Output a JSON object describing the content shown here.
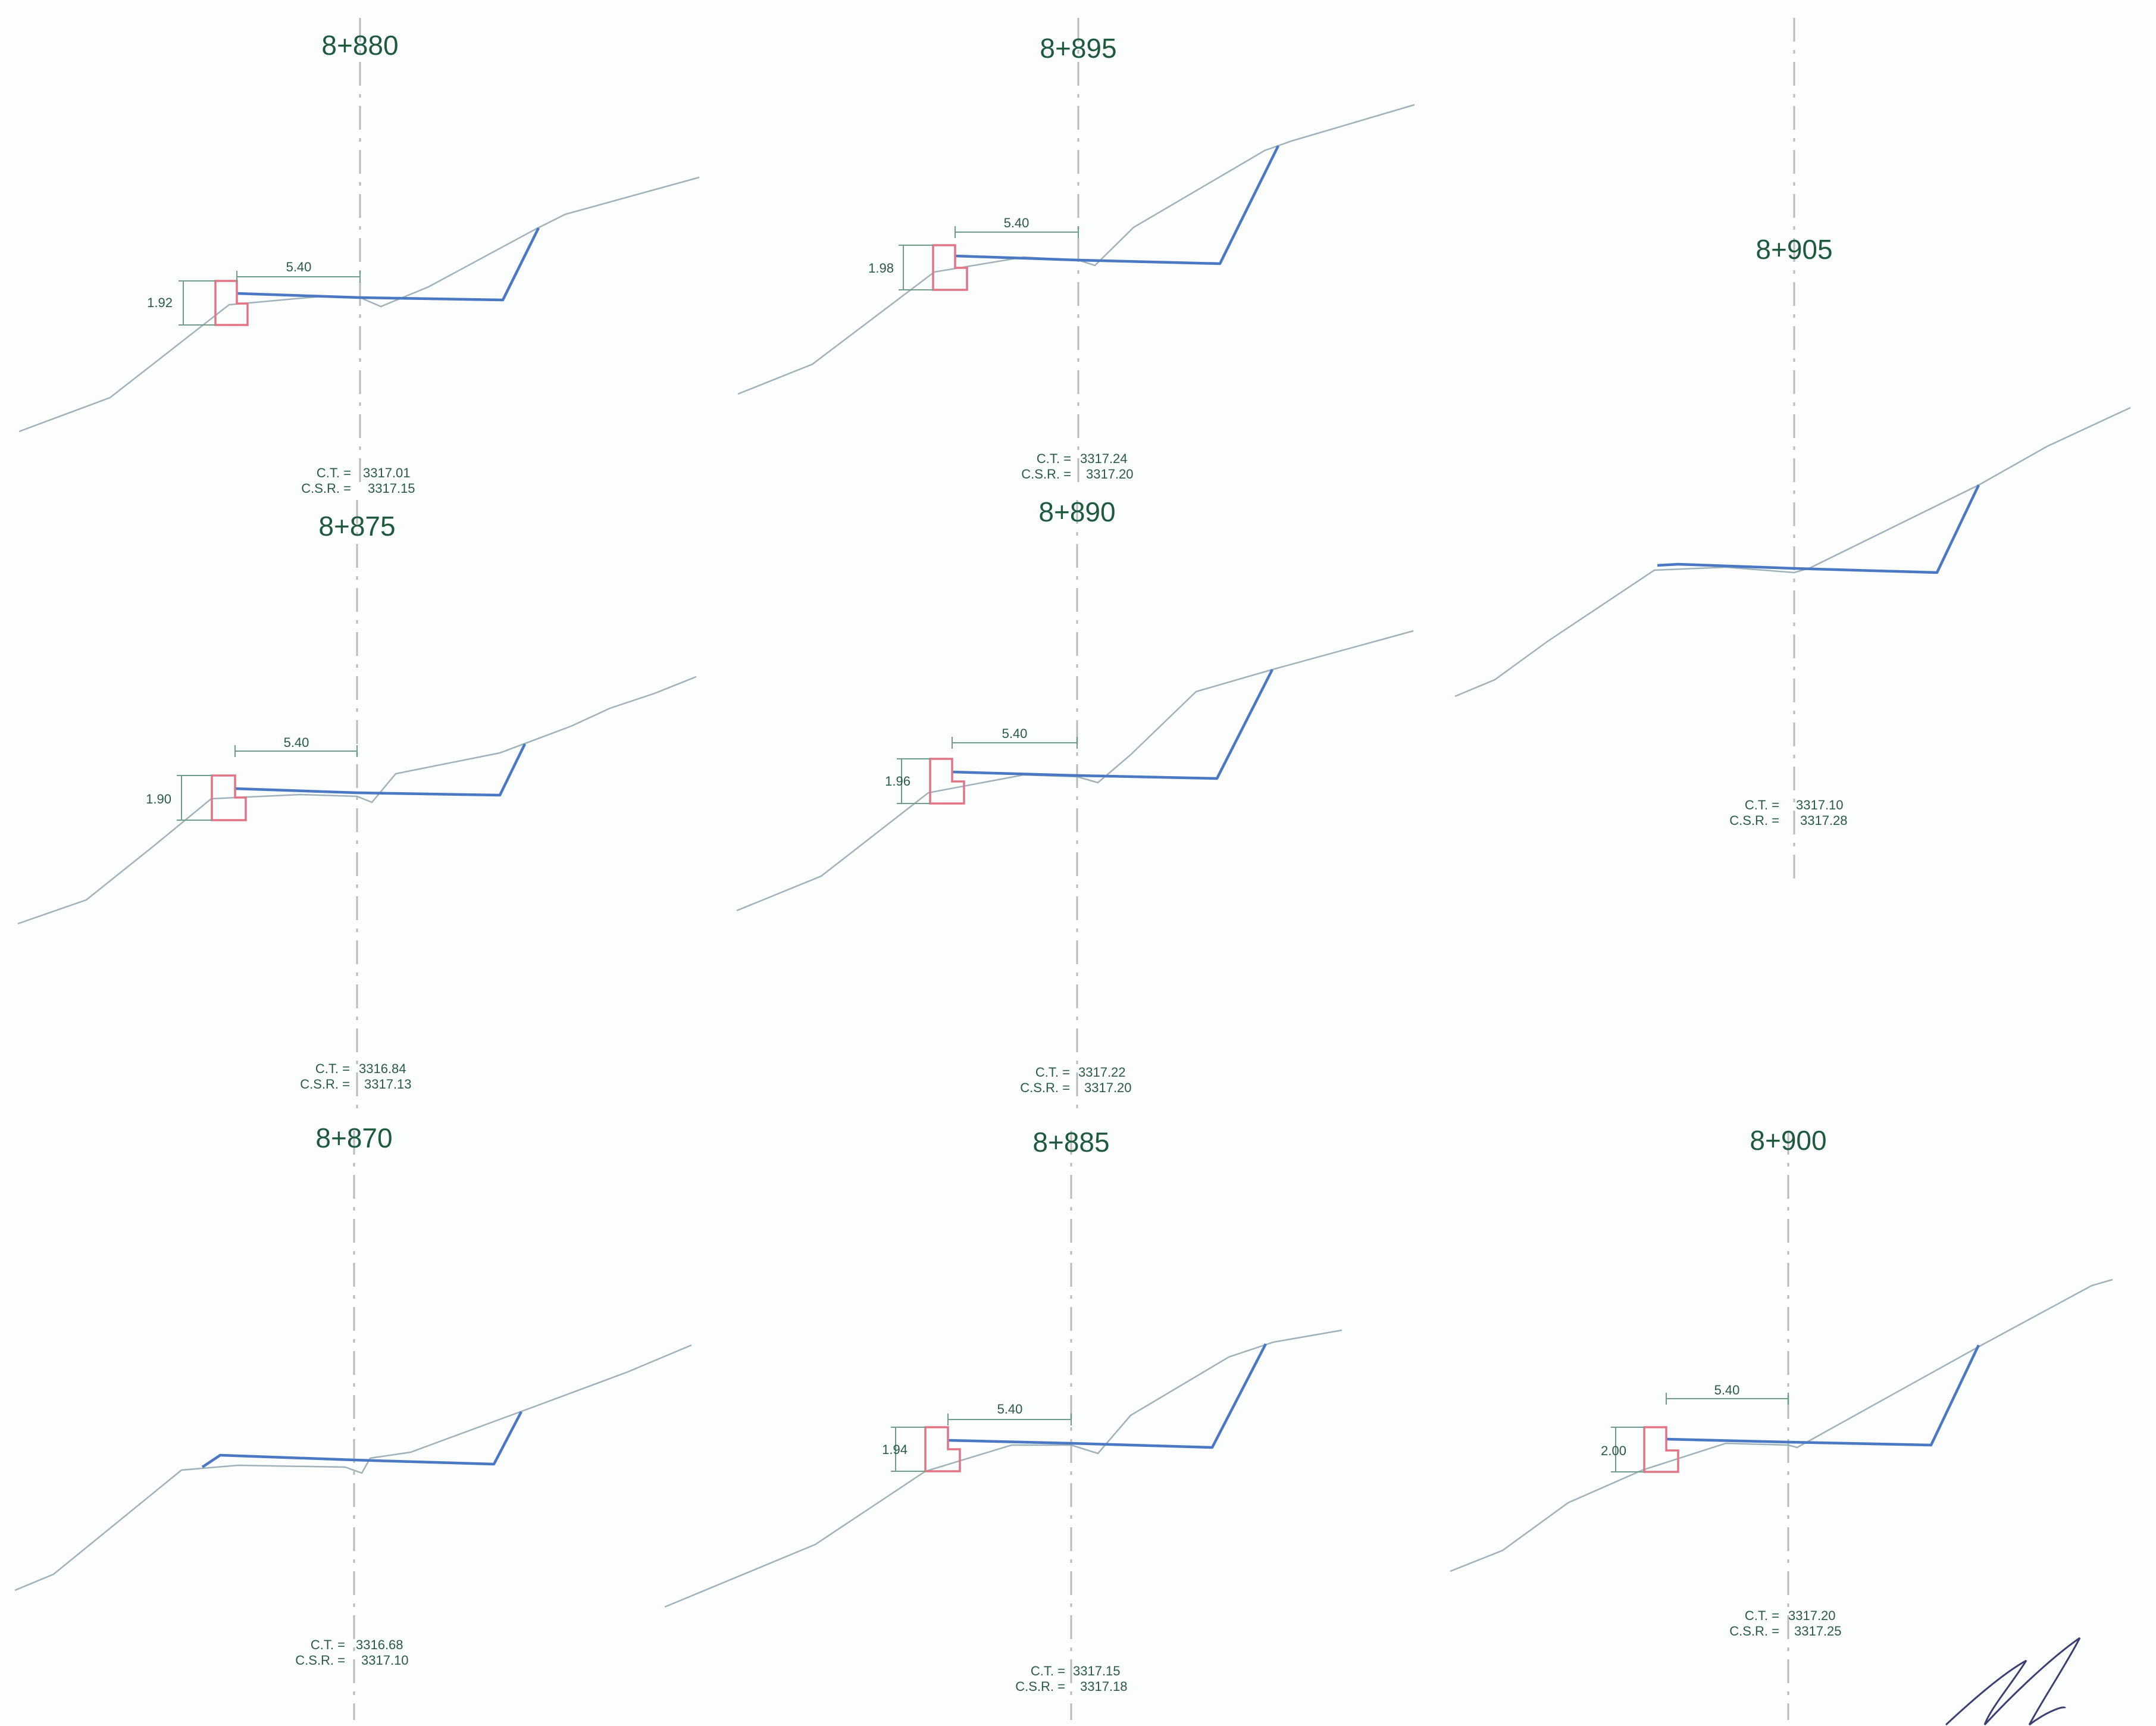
{
  "sections": [
    {
      "station": "8+880",
      "width_label": "5.40",
      "height_label": "1.92",
      "ct_label": "C.T. =",
      "ct_value": "3317.01",
      "csr_label": "C.S.R. =",
      "csr_value": "3317.15"
    },
    {
      "station": "8+895",
      "width_label": "5.40",
      "height_label": "1.98",
      "ct_label": "C.T. =",
      "ct_value": "3317.24",
      "csr_label": "C.S.R. =",
      "csr_value": "3317.20"
    },
    {
      "station": "8+905",
      "ct_label": "C.T. =",
      "ct_value": "3317.10",
      "csr_label": "C.S.R. =",
      "csr_value": "3317.28"
    },
    {
      "station": "8+875",
      "width_label": "5.40",
      "height_label": "1.90",
      "ct_label": "C.T. =",
      "ct_value": "3316.84",
      "csr_label": "C.S.R. =",
      "csr_value": "3317.13"
    },
    {
      "station": "8+890",
      "width_label": "5.40",
      "height_label": "1.96",
      "ct_label": "C.T. =",
      "ct_value": "3317.22",
      "csr_label": "C.S.R. =",
      "csr_value": "3317.20"
    },
    {
      "station": "8+870",
      "ct_label": "C.T. =",
      "ct_value": "3316.68",
      "csr_label": "C.S.R. =",
      "csr_value": "3317.10"
    },
    {
      "station": "8+885",
      "width_label": "5.40",
      "height_label": "1.94",
      "ct_label": "C.T. =",
      "ct_value": "3317.15",
      "csr_label": "C.S.R. =",
      "csr_value": "3317.18"
    },
    {
      "station": "8+900",
      "width_label": "5.40",
      "height_label": "2.00",
      "ct_label": "C.T. =",
      "ct_value": "3317.20",
      "csr_label": "C.S.R. =",
      "csr_value": "3317.25"
    }
  ],
  "colors": {
    "ground": "#9fb2bc",
    "road": "#4a78c2",
    "curb": "#e27585",
    "text": "#1f5a3f"
  }
}
